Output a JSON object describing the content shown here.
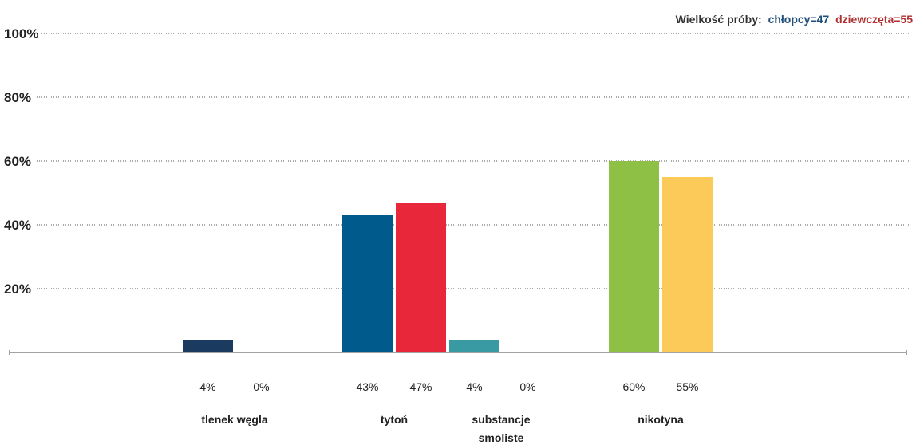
{
  "chart_data": {
    "type": "bar",
    "sample_size": {
      "label": "Wielkość próby:",
      "boys": "chłopcy=47",
      "girls": "dziewczęta=55",
      "label_color": "#333333",
      "boys_color": "#1f4e79",
      "girls_color": "#b03030"
    },
    "ylim": [
      0,
      100
    ],
    "yticks": [
      {
        "value": 20,
        "label": "20%"
      },
      {
        "value": 40,
        "label": "40%"
      },
      {
        "value": 60,
        "label": "60%"
      },
      {
        "value": 80,
        "label": "80%"
      },
      {
        "value": 100,
        "label": "100%"
      }
    ],
    "grid": true,
    "categories": [
      {
        "name": [
          "tlenek węgla"
        ],
        "bars": [
          {
            "value": 4,
            "label": "4%",
            "color": "#1a3a5f"
          },
          {
            "value": 0,
            "label": "0%",
            "color": "#e8283a"
          }
        ]
      },
      {
        "name": [
          "tytoń"
        ],
        "bars": [
          {
            "value": 43,
            "label": "43%",
            "color": "#005a8c"
          },
          {
            "value": 47,
            "label": "47%",
            "color": "#e8283a"
          }
        ]
      },
      {
        "name": [
          "substancje",
          "smoliste"
        ],
        "bars": [
          {
            "value": 4,
            "label": "4%",
            "color": "#3a9aa3"
          },
          {
            "value": 0,
            "label": "0%",
            "color": "#e8283a"
          }
        ]
      },
      {
        "name": [
          "nikotyna"
        ],
        "bars": [
          {
            "value": 60,
            "label": "60%",
            "color": "#8dc044"
          },
          {
            "value": 55,
            "label": "55%",
            "color": "#fcca59"
          }
        ]
      }
    ]
  }
}
